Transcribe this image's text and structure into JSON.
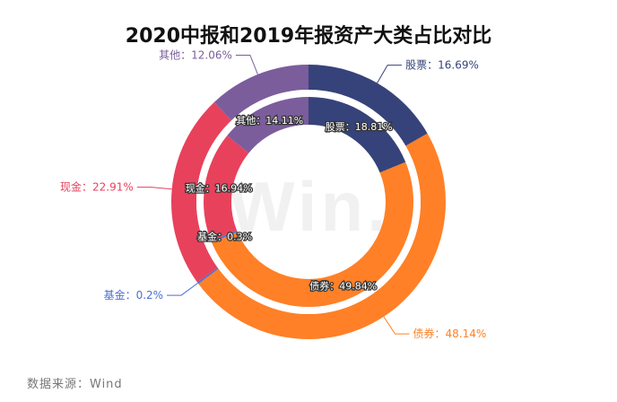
{
  "chart_data": {
    "type": "donut",
    "title": "2020中报和2019年报资产大类占比对比",
    "source": "数据来源：Wind",
    "watermark": "Win.d",
    "outer_ring": {
      "name": "2020中报",
      "slices": [
        {
          "name": "股票",
          "value": 16.69,
          "label": "股票：16.69%",
          "color": "#36437a"
        },
        {
          "name": "债券",
          "value": 48.14,
          "label": "债券：48.14%",
          "color": "#ff8026"
        },
        {
          "name": "基金",
          "value": 0.2,
          "label": "基金：0.2%",
          "color": "#4a6fd4"
        },
        {
          "name": "现金",
          "value": 22.91,
          "label": "现金：22.91%",
          "color": "#e8415c"
        },
        {
          "name": "其他",
          "value": 12.06,
          "label": "其他：12.06%",
          "color": "#7b5d9c"
        }
      ]
    },
    "inner_ring": {
      "name": "2019年报",
      "slices": [
        {
          "name": "股票",
          "value": 18.81,
          "label": "股票：18.81%",
          "color": "#36437a"
        },
        {
          "name": "债券",
          "value": 49.84,
          "label": "债券：49.84%",
          "color": "#ff8026"
        },
        {
          "name": "基金",
          "value": 0.3,
          "label": "基金：0.3%",
          "color": "#4a6fd4"
        },
        {
          "name": "现金",
          "value": 16.94,
          "label": "现金：16.94%",
          "color": "#e8415c"
        },
        {
          "name": "其他",
          "value": 14.11,
          "label": "其他：14.11%",
          "color": "#7b5d9c"
        }
      ]
    }
  }
}
